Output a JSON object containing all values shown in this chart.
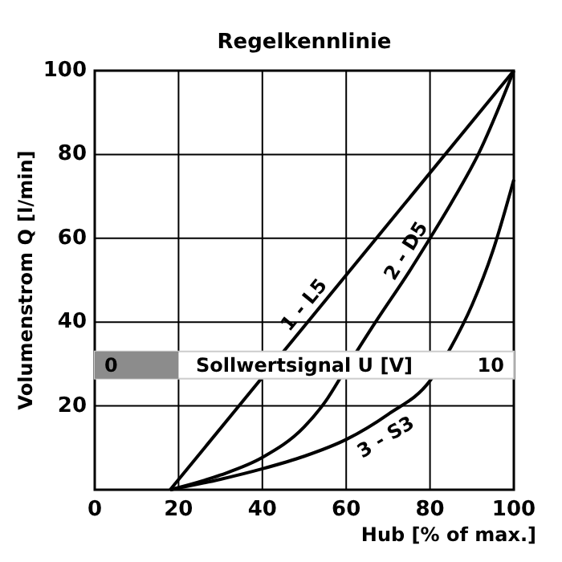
{
  "chart_data": {
    "type": "line",
    "title": "Regelkennlinie",
    "xlabel": "Hub [% of max.]",
    "ylabel": "Volumenstrom Q [l/min]",
    "xlim": [
      0,
      100
    ],
    "xticks": [
      0,
      20,
      40,
      60,
      80,
      100
    ],
    "ylim": [
      0,
      100
    ],
    "yticks": [
      {
        "value": 0,
        "label": null
      },
      20,
      40,
      60,
      80,
      100
    ],
    "grid": true,
    "marker": "none",
    "line_style": "solid",
    "series": [
      {
        "name": "1 - L5",
        "color": "#000000",
        "x": [
          18,
          100
        ],
        "values": [
          0,
          100
        ]
      },
      {
        "name": "2 - D5",
        "color": "#000000",
        "x": [
          18,
          30,
          40,
          50,
          55,
          60,
          67,
          75,
          80,
          86,
          91.5,
          100
        ],
        "values": [
          0,
          3.5,
          7.7,
          15,
          21,
          29,
          40,
          52,
          60,
          70,
          80,
          100
        ]
      },
      {
        "name": "3 - S3",
        "color": "#000000",
        "x": [
          18,
          30,
          40,
          50,
          60,
          70,
          80,
          85,
          90,
          95,
          100
        ],
        "values": [
          0,
          2.5,
          5,
          8,
          12,
          18,
          26,
          34,
          44,
          57,
          74
        ]
      }
    ],
    "bands": [
      {
        "axis": "y",
        "from": 26.5,
        "to": 33,
        "label": "Sollwertsignal U [V]",
        "color": "#ffffff"
      }
    ],
    "annotations": [
      "0",
      "10"
    ]
  }
}
